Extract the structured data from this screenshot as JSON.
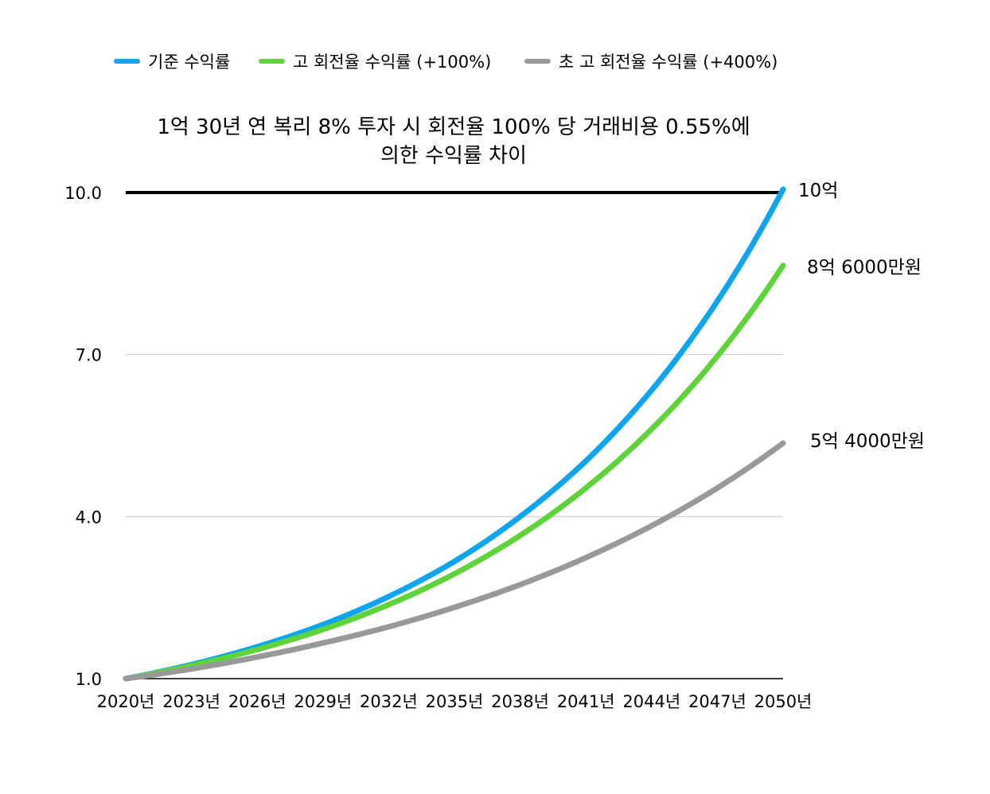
{
  "chart_data": {
    "type": "line",
    "title_lines": [
      "1억 30년 연 복리 8% 투자 시 회전율 100% 당 거래비용 0.55%에",
      "의한 수익률 차이"
    ],
    "xlabel": "",
    "ylabel": "",
    "x_range": [
      2020,
      2050
    ],
    "ylim": [
      1.0,
      10.0
    ],
    "y_ticks": [
      1.0,
      4.0,
      7.0,
      10.0
    ],
    "y_tick_labels": [
      "1.0",
      "4.0",
      "7.0",
      "10.0"
    ],
    "x_ticks": [
      2020,
      2023,
      2026,
      2029,
      2032,
      2035,
      2038,
      2041,
      2044,
      2047,
      2050
    ],
    "x_tick_labels": [
      "2020년",
      "2023년",
      "2026년",
      "2029년",
      "2032년",
      "2035년",
      "2038년",
      "2041년",
      "2044년",
      "2047년",
      "2050년"
    ],
    "grid": true,
    "legend_position": "top",
    "reference_line": {
      "y": 10.0,
      "color": "#000000"
    },
    "series": [
      {
        "name": "기준 수익률",
        "color": "#0ea5f0",
        "x": [
          2020,
          2023,
          2026,
          2029,
          2032,
          2035,
          2038,
          2041,
          2044,
          2047,
          2050
        ],
        "values": [
          1.0,
          1.26,
          1.59,
          2.0,
          2.52,
          3.17,
          4.0,
          5.03,
          6.34,
          7.99,
          10.06
        ],
        "end_label": "10억"
      },
      {
        "name": "고 회전율 수익률 (+100%)",
        "color": "#5fd43a",
        "x": [
          2020,
          2023,
          2026,
          2029,
          2032,
          2035,
          2038,
          2041,
          2044,
          2047,
          2050
        ],
        "values": [
          1.0,
          1.24,
          1.54,
          1.91,
          2.37,
          2.94,
          3.65,
          4.53,
          5.62,
          6.97,
          8.65
        ],
        "end_label": "8억 6000만원"
      },
      {
        "name": "초 고 회전율 수익률 (+400%)",
        "color": "#999999",
        "x": [
          2020,
          2023,
          2026,
          2029,
          2032,
          2035,
          2038,
          2041,
          2044,
          2047,
          2050
        ],
        "values": [
          1.0,
          1.18,
          1.4,
          1.66,
          1.96,
          2.32,
          2.74,
          3.24,
          3.83,
          4.53,
          5.36
        ],
        "end_label": "5억 4000만원"
      }
    ]
  }
}
